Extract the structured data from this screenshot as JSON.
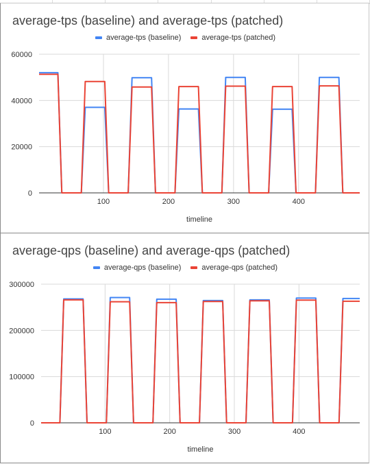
{
  "colors": {
    "baseline": "#4285f4",
    "patched": "#ea4335",
    "grid": "#d9d9d9",
    "axis": "#333333"
  },
  "chart_data": [
    {
      "type": "line",
      "title": "average-tps (baseline) and average-tps (patched)",
      "xlabel": "timeline",
      "ylabel": "",
      "xlim": [
        1,
        494
      ],
      "ylim": [
        0,
        60000
      ],
      "yticks": [
        0,
        20000,
        40000,
        60000
      ],
      "xticks": [
        100,
        200,
        300,
        400
      ],
      "grid": true,
      "legend_position": "top",
      "series": [
        {
          "name": "average-tps (baseline)",
          "color": "#4285f4",
          "x": [
            1,
            30,
            36,
            66,
            72,
            102,
            108,
            138,
            144,
            174,
            180,
            210,
            216,
            246,
            252,
            282,
            288,
            318,
            324,
            354,
            360,
            390,
            396,
            426,
            432,
            462,
            468,
            494
          ],
          "y": [
            52000,
            52000,
            0,
            0,
            37000,
            37000,
            0,
            0,
            49800,
            49800,
            0,
            0,
            36300,
            36300,
            0,
            0,
            50000,
            50000,
            0,
            0,
            36200,
            36200,
            0,
            0,
            50000,
            50000,
            0,
            0
          ]
        },
        {
          "name": "average-tps (patched)",
          "color": "#ea4335",
          "x": [
            1,
            30,
            36,
            66,
            72,
            102,
            108,
            138,
            144,
            174,
            180,
            210,
            216,
            246,
            252,
            282,
            288,
            318,
            324,
            354,
            360,
            390,
            396,
            426,
            432,
            462,
            468,
            494
          ],
          "y": [
            51300,
            51300,
            0,
            0,
            48200,
            48200,
            0,
            0,
            45800,
            45800,
            0,
            0,
            46000,
            46000,
            0,
            0,
            46200,
            46200,
            0,
            0,
            46000,
            46000,
            0,
            0,
            46300,
            46300,
            0,
            0
          ]
        }
      ]
    },
    {
      "type": "line",
      "title": "average-qps (baseline) and average-qps (patched)",
      "xlabel": "timeline",
      "ylabel": "",
      "xlim": [
        1,
        494
      ],
      "ylim": [
        0,
        300000
      ],
      "yticks": [
        0,
        100000,
        200000,
        300000
      ],
      "xticks": [
        100,
        200,
        300,
        400
      ],
      "grid": true,
      "legend_position": "top",
      "series": [
        {
          "name": "average-qps (baseline)",
          "color": "#4285f4",
          "x": [
            1,
            30,
            36,
            66,
            72,
            102,
            108,
            138,
            144,
            174,
            180,
            210,
            216,
            246,
            252,
            282,
            288,
            318,
            324,
            354,
            360,
            390,
            396,
            426,
            432,
            462,
            468,
            494
          ],
          "y": [
            0,
            0,
            268000,
            268000,
            0,
            0,
            271000,
            271000,
            0,
            0,
            267500,
            267500,
            0,
            0,
            264500,
            264500,
            0,
            0,
            266000,
            266000,
            0,
            0,
            270000,
            270000,
            0,
            0,
            269000,
            269000
          ]
        },
        {
          "name": "average-qps (patched)",
          "color": "#ea4335",
          "x": [
            1,
            30,
            36,
            66,
            72,
            102,
            108,
            138,
            144,
            174,
            180,
            210,
            216,
            246,
            252,
            282,
            288,
            318,
            324,
            354,
            360,
            390,
            396,
            426,
            432,
            462,
            468,
            494
          ],
          "y": [
            0,
            0,
            266000,
            266000,
            0,
            0,
            262000,
            262000,
            0,
            0,
            260000,
            260000,
            0,
            0,
            262500,
            262500,
            0,
            0,
            264000,
            264000,
            0,
            0,
            265500,
            265500,
            0,
            0,
            263000,
            263000
          ]
        }
      ]
    }
  ]
}
